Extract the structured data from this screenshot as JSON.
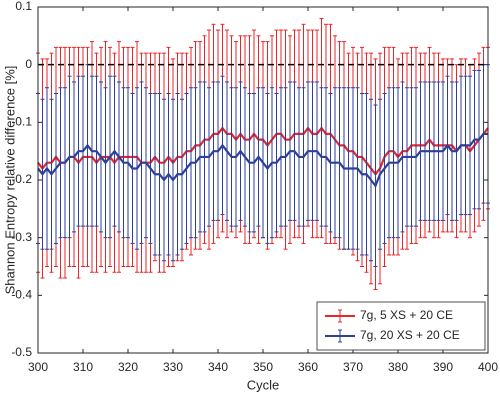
{
  "chart_data": {
    "type": "errorbar",
    "xlabel": "Cycle",
    "ylabel": "Shannon Entropy relative difference [%]",
    "xlim": [
      300,
      400
    ],
    "xticks": [
      300,
      310,
      320,
      330,
      340,
      350,
      360,
      370,
      380,
      390,
      400
    ],
    "ylim": [
      -0.5,
      0.1
    ],
    "yticks": [
      0.1,
      0,
      -0.1,
      -0.2,
      -0.3,
      -0.4,
      -0.5
    ],
    "reference_line": {
      "value": 0,
      "color": "#000000",
      "style": "dashed"
    },
    "legend": "lower right",
    "x": [
      300,
      301,
      302,
      303,
      304,
      305,
      306,
      307,
      308,
      309,
      310,
      311,
      312,
      313,
      314,
      315,
      316,
      317,
      318,
      319,
      320,
      321,
      322,
      323,
      324,
      325,
      326,
      327,
      328,
      329,
      330,
      331,
      332,
      333,
      334,
      335,
      336,
      337,
      338,
      339,
      340,
      341,
      342,
      343,
      344,
      345,
      346,
      347,
      348,
      349,
      350,
      351,
      352,
      353,
      354,
      355,
      356,
      357,
      358,
      359,
      360,
      361,
      362,
      363,
      364,
      365,
      366,
      367,
      368,
      369,
      370,
      371,
      372,
      373,
      374,
      375,
      376,
      377,
      378,
      379,
      380,
      381,
      382,
      383,
      384,
      385,
      386,
      387,
      388,
      389,
      390,
      391,
      392,
      393,
      394,
      395,
      396,
      397,
      398,
      399,
      400
    ],
    "series": [
      {
        "name": "7g, 5 XS + 20 CE",
        "color": "#e8262a",
        "values": [
          -0.17,
          -0.18,
          -0.17,
          -0.17,
          -0.16,
          -0.17,
          -0.17,
          -0.16,
          -0.16,
          -0.17,
          -0.16,
          -0.16,
          -0.16,
          -0.17,
          -0.16,
          -0.16,
          -0.16,
          -0.17,
          -0.16,
          -0.16,
          -0.16,
          -0.16,
          -0.16,
          -0.17,
          -0.17,
          -0.17,
          -0.16,
          -0.17,
          -0.17,
          -0.16,
          -0.17,
          -0.16,
          -0.16,
          -0.15,
          -0.15,
          -0.14,
          -0.14,
          -0.13,
          -0.13,
          -0.12,
          -0.12,
          -0.11,
          -0.12,
          -0.12,
          -0.13,
          -0.12,
          -0.13,
          -0.13,
          -0.12,
          -0.13,
          -0.13,
          -0.14,
          -0.13,
          -0.12,
          -0.12,
          -0.13,
          -0.13,
          -0.12,
          -0.12,
          -0.12,
          -0.11,
          -0.12,
          -0.12,
          -0.11,
          -0.12,
          -0.12,
          -0.13,
          -0.14,
          -0.14,
          -0.15,
          -0.15,
          -0.16,
          -0.16,
          -0.17,
          -0.18,
          -0.19,
          -0.18,
          -0.16,
          -0.15,
          -0.15,
          -0.16,
          -0.15,
          -0.15,
          -0.14,
          -0.14,
          -0.14,
          -0.14,
          -0.13,
          -0.14,
          -0.14,
          -0.14,
          -0.14,
          -0.14,
          -0.15,
          -0.14,
          -0.14,
          -0.15,
          -0.14,
          -0.13,
          -0.12,
          -0.11
        ],
        "errors": [
          0.19,
          0.19,
          0.18,
          0.19,
          0.19,
          0.2,
          0.2,
          0.19,
          0.19,
          0.2,
          0.19,
          0.19,
          0.2,
          0.19,
          0.19,
          0.2,
          0.19,
          0.19,
          0.2,
          0.19,
          0.19,
          0.19,
          0.2,
          0.19,
          0.19,
          0.19,
          0.18,
          0.19,
          0.19,
          0.19,
          0.18,
          0.18,
          0.18,
          0.17,
          0.18,
          0.18,
          0.18,
          0.18,
          0.19,
          0.19,
          0.18,
          0.18,
          0.18,
          0.17,
          0.17,
          0.17,
          0.18,
          0.18,
          0.18,
          0.18,
          0.17,
          0.18,
          0.18,
          0.18,
          0.18,
          0.19,
          0.18,
          0.18,
          0.18,
          0.19,
          0.17,
          0.18,
          0.18,
          0.19,
          0.19,
          0.19,
          0.18,
          0.18,
          0.18,
          0.17,
          0.18,
          0.18,
          0.19,
          0.19,
          0.2,
          0.2,
          0.2,
          0.19,
          0.18,
          0.18,
          0.17,
          0.17,
          0.17,
          0.17,
          0.17,
          0.16,
          0.16,
          0.16,
          0.16,
          0.16,
          0.15,
          0.15,
          0.15,
          0.15,
          0.15,
          0.15,
          0.15,
          0.15,
          0.15,
          0.15,
          0.14
        ]
      },
      {
        "name": "7g, 20 XS + 20 CE",
        "color": "#2e3f9a",
        "values": [
          -0.18,
          -0.19,
          -0.18,
          -0.19,
          -0.18,
          -0.17,
          -0.17,
          -0.16,
          -0.16,
          -0.15,
          -0.15,
          -0.14,
          -0.15,
          -0.15,
          -0.16,
          -0.17,
          -0.16,
          -0.15,
          -0.16,
          -0.17,
          -0.17,
          -0.18,
          -0.18,
          -0.17,
          -0.17,
          -0.18,
          -0.19,
          -0.19,
          -0.2,
          -0.19,
          -0.2,
          -0.19,
          -0.19,
          -0.18,
          -0.17,
          -0.17,
          -0.16,
          -0.16,
          -0.16,
          -0.15,
          -0.15,
          -0.14,
          -0.15,
          -0.16,
          -0.16,
          -0.15,
          -0.16,
          -0.17,
          -0.17,
          -0.16,
          -0.17,
          -0.18,
          -0.17,
          -0.17,
          -0.16,
          -0.16,
          -0.15,
          -0.15,
          -0.16,
          -0.16,
          -0.15,
          -0.15,
          -0.15,
          -0.16,
          -0.16,
          -0.17,
          -0.17,
          -0.17,
          -0.18,
          -0.18,
          -0.18,
          -0.18,
          -0.19,
          -0.19,
          -0.2,
          -0.21,
          -0.19,
          -0.18,
          -0.17,
          -0.17,
          -0.17,
          -0.16,
          -0.16,
          -0.16,
          -0.16,
          -0.15,
          -0.15,
          -0.15,
          -0.15,
          -0.15,
          -0.15,
          -0.14,
          -0.15,
          -0.15,
          -0.14,
          -0.14,
          -0.14,
          -0.13,
          -0.13,
          -0.12,
          -0.12
        ],
        "errors": [
          0.13,
          0.13,
          0.14,
          0.13,
          0.13,
          0.13,
          0.13,
          0.14,
          0.13,
          0.13,
          0.13,
          0.14,
          0.13,
          0.13,
          0.13,
          0.13,
          0.14,
          0.13,
          0.13,
          0.13,
          0.13,
          0.13,
          0.14,
          0.14,
          0.13,
          0.13,
          0.14,
          0.14,
          0.14,
          0.14,
          0.14,
          0.14,
          0.13,
          0.13,
          0.13,
          0.13,
          0.13,
          0.13,
          0.12,
          0.12,
          0.12,
          0.12,
          0.12,
          0.12,
          0.12,
          0.12,
          0.12,
          0.12,
          0.12,
          0.12,
          0.13,
          0.13,
          0.13,
          0.12,
          0.12,
          0.12,
          0.12,
          0.12,
          0.12,
          0.12,
          0.12,
          0.12,
          0.12,
          0.12,
          0.12,
          0.12,
          0.13,
          0.13,
          0.14,
          0.14,
          0.14,
          0.14,
          0.14,
          0.14,
          0.14,
          0.14,
          0.13,
          0.13,
          0.13,
          0.13,
          0.13,
          0.13,
          0.12,
          0.12,
          0.12,
          0.12,
          0.12,
          0.12,
          0.12,
          0.12,
          0.12,
          0.12,
          0.12,
          0.12,
          0.12,
          0.12,
          0.12,
          0.12,
          0.12,
          0.12,
          0.12
        ]
      }
    ]
  }
}
